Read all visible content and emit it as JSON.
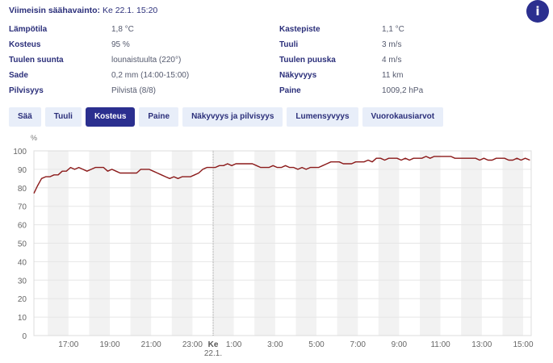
{
  "header": {
    "label": "Viimeisin säähavainto:",
    "value": "Ke 22.1. 15:20",
    "info_icon": "i"
  },
  "observations": {
    "left": [
      {
        "label": "Lämpötila",
        "value": "1,8 °C"
      },
      {
        "label": "Kosteus",
        "value": "95 %"
      },
      {
        "label": "Tuulen suunta",
        "value": "lounaistuulta (220°)"
      },
      {
        "label": "Sade",
        "value": "0,2 mm (14:00-15:00)"
      },
      {
        "label": "Pilvisyys",
        "value": "Pilvistä (8/8)"
      }
    ],
    "right": [
      {
        "label": "Kastepiste",
        "value": "1,1 °C"
      },
      {
        "label": "Tuuli",
        "value": "3 m/s"
      },
      {
        "label": "Tuulen puuska",
        "value": "4 m/s"
      },
      {
        "label": "Näkyvyys",
        "value": "11 km"
      },
      {
        "label": "Paine",
        "value": "1009,2 hPa"
      }
    ]
  },
  "tabs": [
    {
      "label": "Sää",
      "active": false
    },
    {
      "label": "Tuuli",
      "active": false
    },
    {
      "label": "Kosteus",
      "active": true
    },
    {
      "label": "Paine",
      "active": false
    },
    {
      "label": "Näkyvyys ja pilvisyys",
      "active": false
    },
    {
      "label": "Lumensyvyys",
      "active": false
    },
    {
      "label": "Vuorokausiarvot",
      "active": false
    }
  ],
  "colors": {
    "accent": "#2b2f8f",
    "tab_bg": "#e8eef9",
    "line": "#8b1a1a",
    "band": "#f2f2f2",
    "grid": "#e6e6e6"
  },
  "chart_data": {
    "type": "line",
    "title": "Kosteus",
    "ylabel": "%",
    "xlabel": "",
    "ylim": [
      0,
      100
    ],
    "yticks": [
      0,
      10,
      20,
      30,
      40,
      50,
      60,
      70,
      80,
      90,
      100
    ],
    "xticks": [
      "17:00",
      "19:00",
      "21:00",
      "23:00",
      "1:00",
      "3:00",
      "5:00",
      "7:00",
      "9:00",
      "11:00",
      "13:00",
      "15:00"
    ],
    "day_marker": {
      "label": "Ke",
      "sublabel": "22.1.",
      "time": "00:00"
    },
    "x_range": [
      "15:17",
      "15:20"
    ],
    "grid": true,
    "legend": false,
    "series": [
      {
        "name": "Kosteus (%)",
        "x_hours": [
          -8.7,
          -8.5,
          -8.3,
          -8.1,
          -7.9,
          -7.7,
          -7.5,
          -7.3,
          -7.1,
          -6.9,
          -6.7,
          -6.5,
          -6.3,
          -6.1,
          -5.9,
          -5.7,
          -5.5,
          -5.3,
          -5.1,
          -4.9,
          -4.7,
          -4.5,
          -4.3,
          -4.1,
          -3.9,
          -3.7,
          -3.5,
          -3.3,
          -3.1,
          -2.9,
          -2.7,
          -2.5,
          -2.3,
          -2.1,
          -1.9,
          -1.7,
          -1.5,
          -1.3,
          -1.1,
          -0.9,
          -0.7,
          -0.5,
          -0.3,
          -0.1,
          0.1,
          0.3,
          0.5,
          0.7,
          0.9,
          1.1,
          1.3,
          1.5,
          1.7,
          1.9,
          2.1,
          2.3,
          2.5,
          2.7,
          2.9,
          3.1,
          3.3,
          3.5,
          3.7,
          3.9,
          4.1,
          4.3,
          4.5,
          4.7,
          4.9,
          5.1,
          5.3,
          5.5,
          5.7,
          5.9,
          6.1,
          6.3,
          6.5,
          6.7,
          6.9,
          7.1,
          7.3,
          7.5,
          7.7,
          7.9,
          8.1,
          8.3,
          8.5,
          8.7,
          8.9,
          9.1,
          9.3,
          9.5,
          9.7,
          9.9,
          10.1,
          10.3,
          10.5,
          10.7,
          10.9,
          11.1,
          11.3,
          11.5,
          11.7,
          11.9,
          12.1,
          12.3,
          12.5,
          12.7,
          12.9,
          13.1,
          13.3,
          13.5,
          13.7,
          13.9,
          14.1,
          14.3,
          14.5,
          14.7,
          14.9,
          15.1,
          15.33
        ],
        "values": [
          77,
          81,
          85,
          86,
          86,
          87,
          87,
          89,
          89,
          91,
          90,
          91,
          90,
          89,
          90,
          91,
          91,
          91,
          89,
          90,
          89,
          88,
          88,
          88,
          88,
          88,
          90,
          90,
          90,
          89,
          88,
          87,
          86,
          85,
          86,
          85,
          86,
          86,
          86,
          87,
          88,
          90,
          91,
          91,
          91,
          92,
          92,
          93,
          92,
          93,
          93,
          93,
          93,
          93,
          92,
          91,
          91,
          91,
          92,
          91,
          91,
          92,
          91,
          91,
          90,
          91,
          90,
          91,
          91,
          91,
          92,
          93,
          94,
          94,
          94,
          93,
          93,
          93,
          94,
          94,
          94,
          95,
          94,
          96,
          96,
          95,
          96,
          96,
          96,
          95,
          96,
          95,
          96,
          96,
          96,
          97,
          96,
          97,
          97,
          97,
          97,
          97,
          96,
          96,
          96,
          96,
          96,
          96,
          95,
          96,
          95,
          95,
          96,
          96,
          96,
          95,
          95,
          96,
          95,
          96,
          95
        ]
      }
    ]
  }
}
